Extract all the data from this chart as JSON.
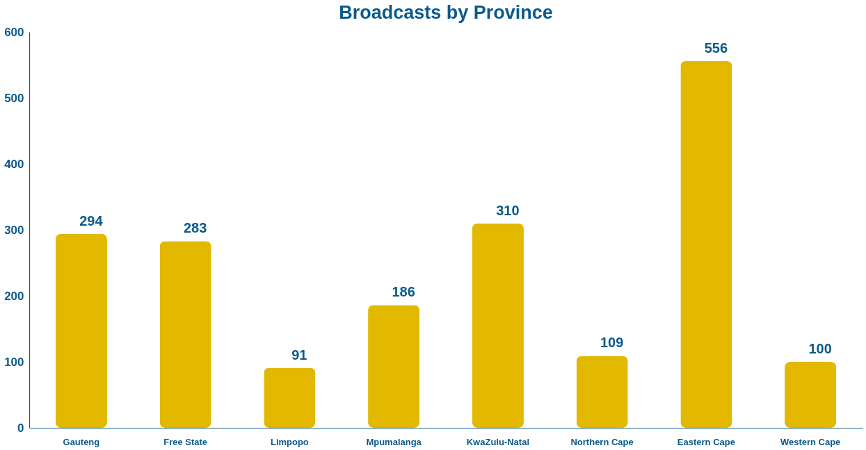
{
  "chart_data": {
    "type": "bar",
    "title": "Broadcasts by Province",
    "categories": [
      "Gauteng",
      "Free State",
      "Limpopo",
      "Mpumalanga",
      "KwaZulu-Natal",
      "Northern Cape",
      "Eastern Cape",
      "Western Cape"
    ],
    "values": [
      294,
      283,
      91,
      186,
      310,
      109,
      556,
      100
    ],
    "color": "#e3b800",
    "ylim": [
      0,
      600
    ],
    "yticks": [
      0,
      100,
      200,
      300,
      400,
      500,
      600
    ],
    "grid": false,
    "data_labels": true
  }
}
